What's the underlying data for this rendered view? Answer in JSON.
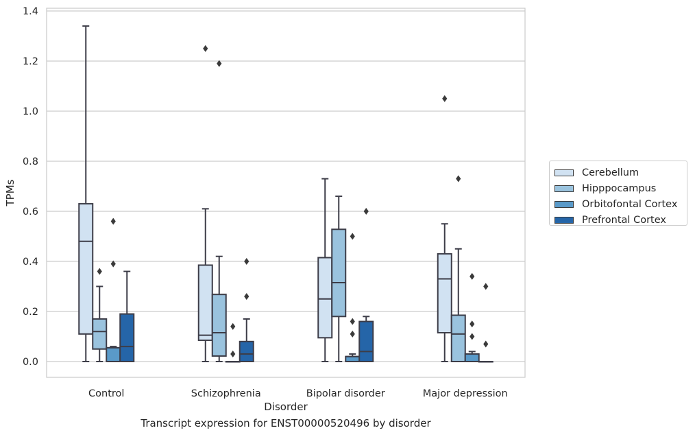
{
  "caption": "Transcript expression for ENST00000520496 by disorder",
  "chart_data": {
    "type": "box",
    "xlabel": "Disorder",
    "ylabel": "TPMs",
    "categories": [
      "Control",
      "Schizophrenia",
      "Bipolar disorder",
      "Major depression"
    ],
    "ylim": [
      -0.06,
      1.41
    ],
    "yticks": [
      "0.0",
      "0.2",
      "0.4",
      "0.6",
      "0.8",
      "1.0",
      "1.2",
      "1.4"
    ],
    "grid": "horizontal",
    "legend_position": "right",
    "series": [
      {
        "name": "Cerebellum",
        "color": "#d1e2f2",
        "boxes": [
          {
            "whisker_low": 0.0,
            "q1": 0.11,
            "median": 0.48,
            "q3": 0.63,
            "whisker_high": 1.34,
            "outliers": []
          },
          {
            "whisker_low": 0.0,
            "q1": 0.085,
            "median": 0.105,
            "q3": 0.385,
            "whisker_high": 0.61,
            "outliers": [
              1.25
            ]
          },
          {
            "whisker_low": 0.0,
            "q1": 0.095,
            "median": 0.25,
            "q3": 0.415,
            "whisker_high": 0.73,
            "outliers": []
          },
          {
            "whisker_low": 0.0,
            "q1": 0.115,
            "median": 0.33,
            "q3": 0.43,
            "whisker_high": 0.55,
            "outliers": [
              1.05
            ]
          }
        ]
      },
      {
        "name": "Hipppocampus",
        "color": "#9ac3de",
        "boxes": [
          {
            "whisker_low": 0.0,
            "q1": 0.05,
            "median": 0.12,
            "q3": 0.17,
            "whisker_high": 0.3,
            "outliers": [
              0.36
            ]
          },
          {
            "whisker_low": 0.0,
            "q1": 0.022,
            "median": 0.115,
            "q3": 0.268,
            "whisker_high": 0.42,
            "outliers": [
              1.19
            ]
          },
          {
            "whisker_low": 0.0,
            "q1": 0.18,
            "median": 0.315,
            "q3": 0.528,
            "whisker_high": 0.66,
            "outliers": []
          },
          {
            "whisker_low": 0.0,
            "q1": 0.0,
            "median": 0.11,
            "q3": 0.185,
            "whisker_high": 0.45,
            "outliers": [
              0.73
            ]
          }
        ]
      },
      {
        "name": "Orbitofontal Cortex",
        "color": "#5a9ac9",
        "boxes": [
          {
            "whisker_low": 0.0,
            "q1": 0.0,
            "median": 0.055,
            "q3": 0.055,
            "whisker_high": 0.06,
            "outliers": [
              0.39,
              0.56
            ]
          },
          {
            "whisker_low": 0.0,
            "q1": 0.0,
            "median": 0.0,
            "q3": 0.0,
            "whisker_high": 0.0,
            "outliers": [
              0.03,
              0.14
            ]
          },
          {
            "whisker_low": 0.0,
            "q1": 0.0,
            "median": 0.02,
            "q3": 0.02,
            "whisker_high": 0.03,
            "outliers": [
              0.11,
              0.16,
              0.5
            ]
          },
          {
            "whisker_low": 0.0,
            "q1": 0.0,
            "median": 0.03,
            "q3": 0.03,
            "whisker_high": 0.04,
            "outliers": [
              0.1,
              0.15,
              0.34
            ]
          }
        ]
      },
      {
        "name": "Prefrontal Cortex",
        "color": "#2565a8",
        "boxes": [
          {
            "whisker_low": 0.0,
            "q1": 0.0,
            "median": 0.06,
            "q3": 0.19,
            "whisker_high": 0.36,
            "outliers": []
          },
          {
            "whisker_low": 0.0,
            "q1": 0.0,
            "median": 0.03,
            "q3": 0.08,
            "whisker_high": 0.17,
            "outliers": [
              0.26,
              0.4
            ]
          },
          {
            "whisker_low": 0.0,
            "q1": 0.0,
            "median": 0.04,
            "q3": 0.16,
            "whisker_high": 0.18,
            "outliers": [
              0.6
            ]
          },
          {
            "whisker_low": 0.0,
            "q1": 0.0,
            "median": 0.0,
            "q3": 0.0,
            "whisker_high": 0.0,
            "outliers": [
              0.07,
              0.3
            ]
          }
        ]
      }
    ]
  }
}
